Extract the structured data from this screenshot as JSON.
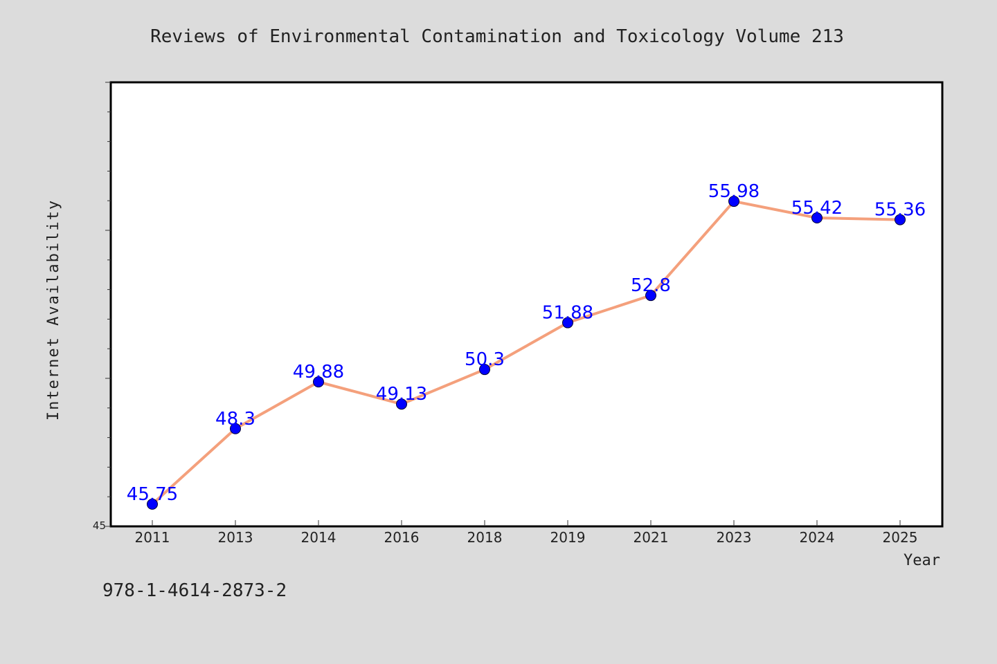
{
  "footer_code": "978-1-4614-2873-2",
  "colors": {
    "background": "#dcdcdc",
    "plot_area": "#ffffff",
    "line": "#f4a07c",
    "marker": "#0000ff",
    "label": "#0000ff",
    "axis_text": "#222222"
  },
  "chart_data": {
    "type": "line",
    "title": "Reviews of Environmental Contamination and Toxicology Volume 213",
    "xlabel": "Year",
    "ylabel": "Internet Availability",
    "categories": [
      "2011",
      "2013",
      "2014",
      "2016",
      "2018",
      "2019",
      "2021",
      "2023",
      "2024",
      "2025"
    ],
    "series": [
      {
        "values": [
          45.75,
          48.3,
          49.88,
          49.13,
          50.3,
          51.88,
          52.8,
          55.98,
          55.42,
          55.36
        ]
      }
    ],
    "data_labels": [
      "45.75",
      "48.3",
      "49.88",
      "49.13",
      "50.3",
      "51.88",
      "52.8",
      "55.98",
      "55.42",
      "55.36"
    ],
    "ylim": [
      45,
      60
    ],
    "y_tick_labels": [
      "45"
    ],
    "y_tick_step": 1,
    "grid": false,
    "markers": "circle"
  }
}
